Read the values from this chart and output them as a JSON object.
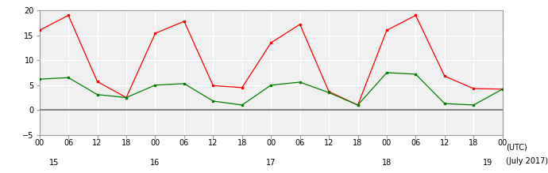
{
  "xlabel_utc": "(UTC)",
  "xlabel_date": "(July 2017)",
  "ylim": [
    -5,
    20
  ],
  "yticks": [
    -5,
    0,
    5,
    10,
    15,
    20
  ],
  "bg_color": "#ffffff",
  "plot_bg_color": "#f0f0f0",
  "zero_line_color": "#808080",
  "grid_color": "#ffffff",
  "red_color": "#ff0000",
  "green_color": "#008000",
  "x_hours": [
    0,
    6,
    12,
    18,
    24,
    30,
    36,
    42,
    48,
    54,
    60,
    66,
    72,
    78,
    84,
    90,
    96
  ],
  "x_tick_labels": [
    "00",
    "06",
    "12",
    "18",
    "00",
    "06",
    "12",
    "18",
    "00",
    "06",
    "12",
    "18",
    "00",
    "06",
    "12",
    "18",
    "00"
  ],
  "x_day_positions": [
    3,
    24,
    48,
    72,
    93
  ],
  "x_day_labels": [
    "15",
    "16",
    "17",
    "18",
    "19"
  ],
  "red_y": [
    16.0,
    19.0,
    5.7,
    2.5,
    15.4,
    17.8,
    4.9,
    4.5,
    13.5,
    17.2,
    3.7,
    1.0,
    16.0,
    19.0,
    6.8,
    4.3,
    4.2
  ],
  "green_y": [
    6.2,
    6.5,
    3.1,
    2.5,
    5.0,
    5.3,
    1.8,
    1.0,
    5.0,
    5.6,
    3.5,
    1.0,
    7.5,
    7.2,
    1.3,
    1.0,
    4.2
  ]
}
